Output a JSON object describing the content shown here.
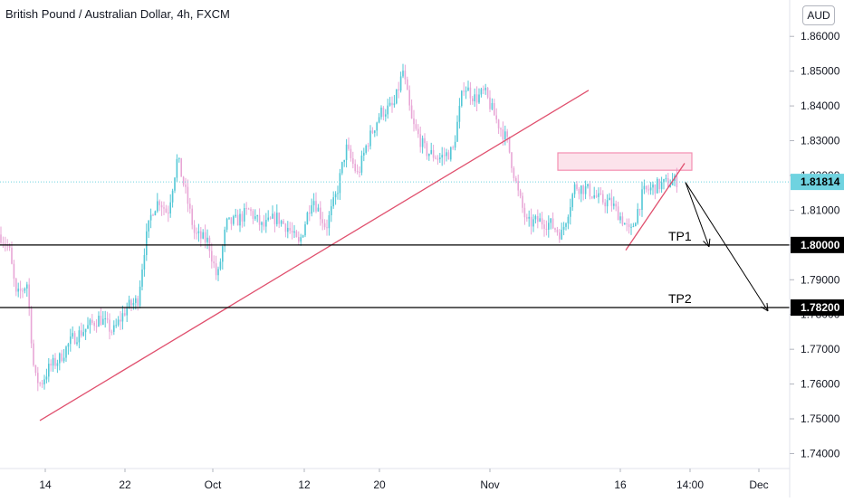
{
  "header": {
    "title": "British Pound / Australian Dollar, 4h, FXCM",
    "currency": "AUD"
  },
  "colors": {
    "up": "#53c7d6",
    "down": "#e8a6d6",
    "trendline": "#e0506e",
    "zone": "#f48fb1",
    "price_tag": "#6fd3e0",
    "level": "#000000",
    "axis_text": "#131722"
  },
  "chart_data": {
    "type": "candlestick",
    "title": "British Pound / Australian Dollar, 4h, FXCM",
    "ylim": [
      1.737,
      1.865
    ],
    "y_ticks": [
      "1.86000",
      "1.85000",
      "1.84000",
      "1.83000",
      "1.82000",
      "1.81000",
      "1.80000",
      "1.79000",
      "1.78000",
      "1.77000",
      "1.76000",
      "1.75000",
      "1.74000"
    ],
    "x_ticks": [
      "14",
      "22",
      "Oct",
      "12",
      "20",
      "Nov",
      "16",
      "14:00",
      "Dec"
    ],
    "last_price": "1.81814",
    "levels": [
      {
        "label": "TP1",
        "price": 1.8,
        "tag": "1.80000"
      },
      {
        "label": "TP2",
        "price": 1.782,
        "tag": "1.78200"
      }
    ],
    "close_path": [
      [
        0,
        1.803
      ],
      [
        10,
        1.799
      ],
      [
        18,
        1.785
      ],
      [
        30,
        1.789
      ],
      [
        38,
        1.762
      ],
      [
        45,
        1.76
      ],
      [
        55,
        1.765
      ],
      [
        65,
        1.767
      ],
      [
        80,
        1.773
      ],
      [
        95,
        1.776
      ],
      [
        110,
        1.779
      ],
      [
        125,
        1.775
      ],
      [
        140,
        1.782
      ],
      [
        152,
        1.784
      ],
      [
        160,
        1.8
      ],
      [
        168,
        1.81
      ],
      [
        176,
        1.813
      ],
      [
        185,
        1.809
      ],
      [
        196,
        1.825
      ],
      [
        205,
        1.815
      ],
      [
        215,
        1.803
      ],
      [
        230,
        1.801
      ],
      [
        240,
        1.79
      ],
      [
        250,
        1.806
      ],
      [
        262,
        1.807
      ],
      [
        275,
        1.81
      ],
      [
        290,
        1.805
      ],
      [
        305,
        1.808
      ],
      [
        318,
        1.805
      ],
      [
        330,
        1.8
      ],
      [
        345,
        1.814
      ],
      [
        360,
        1.805
      ],
      [
        372,
        1.815
      ],
      [
        382,
        1.828
      ],
      [
        395,
        1.82
      ],
      [
        405,
        1.829
      ],
      [
        420,
        1.838
      ],
      [
        435,
        1.84
      ],
      [
        445,
        1.85
      ],
      [
        455,
        1.835
      ],
      [
        470,
        1.827
      ],
      [
        485,
        1.825
      ],
      [
        500,
        1.827
      ],
      [
        512,
        1.846
      ],
      [
        525,
        1.842
      ],
      [
        535,
        1.844
      ],
      [
        548,
        1.836
      ],
      [
        560,
        1.83
      ],
      [
        572,
        1.815
      ],
      [
        582,
        1.806
      ],
      [
        595,
        1.807
      ],
      [
        608,
        1.806
      ],
      [
        620,
        1.803
      ],
      [
        635,
        1.817
      ],
      [
        648,
        1.816
      ],
      [
        662,
        1.813
      ],
      [
        675,
        1.812
      ],
      [
        688,
        1.807
      ],
      [
        696,
        1.803
      ],
      [
        710,
        1.815
      ],
      [
        725,
        1.817
      ],
      [
        740,
        1.818
      ],
      [
        748,
        1.8185
      ]
    ],
    "trendlines": [
      {
        "name": "ascending trendline",
        "start": [
          44,
          1.7495
        ],
        "end": [
          650,
          1.8445
        ]
      },
      {
        "name": "rising wedge line",
        "start": [
          691,
          1.7985
        ],
        "end": [
          756,
          1.8235
        ]
      }
    ],
    "resistance_zone": {
      "x_start": 616,
      "x_end": 764,
      "y_low": 1.8215,
      "y_high": 1.8265
    },
    "projections": [
      {
        "from": [
          757,
          1.818
        ],
        "to": [
          783,
          1.7995
        ]
      },
      {
        "from": [
          757,
          1.818
        ],
        "to": [
          848,
          1.781
        ]
      }
    ]
  }
}
